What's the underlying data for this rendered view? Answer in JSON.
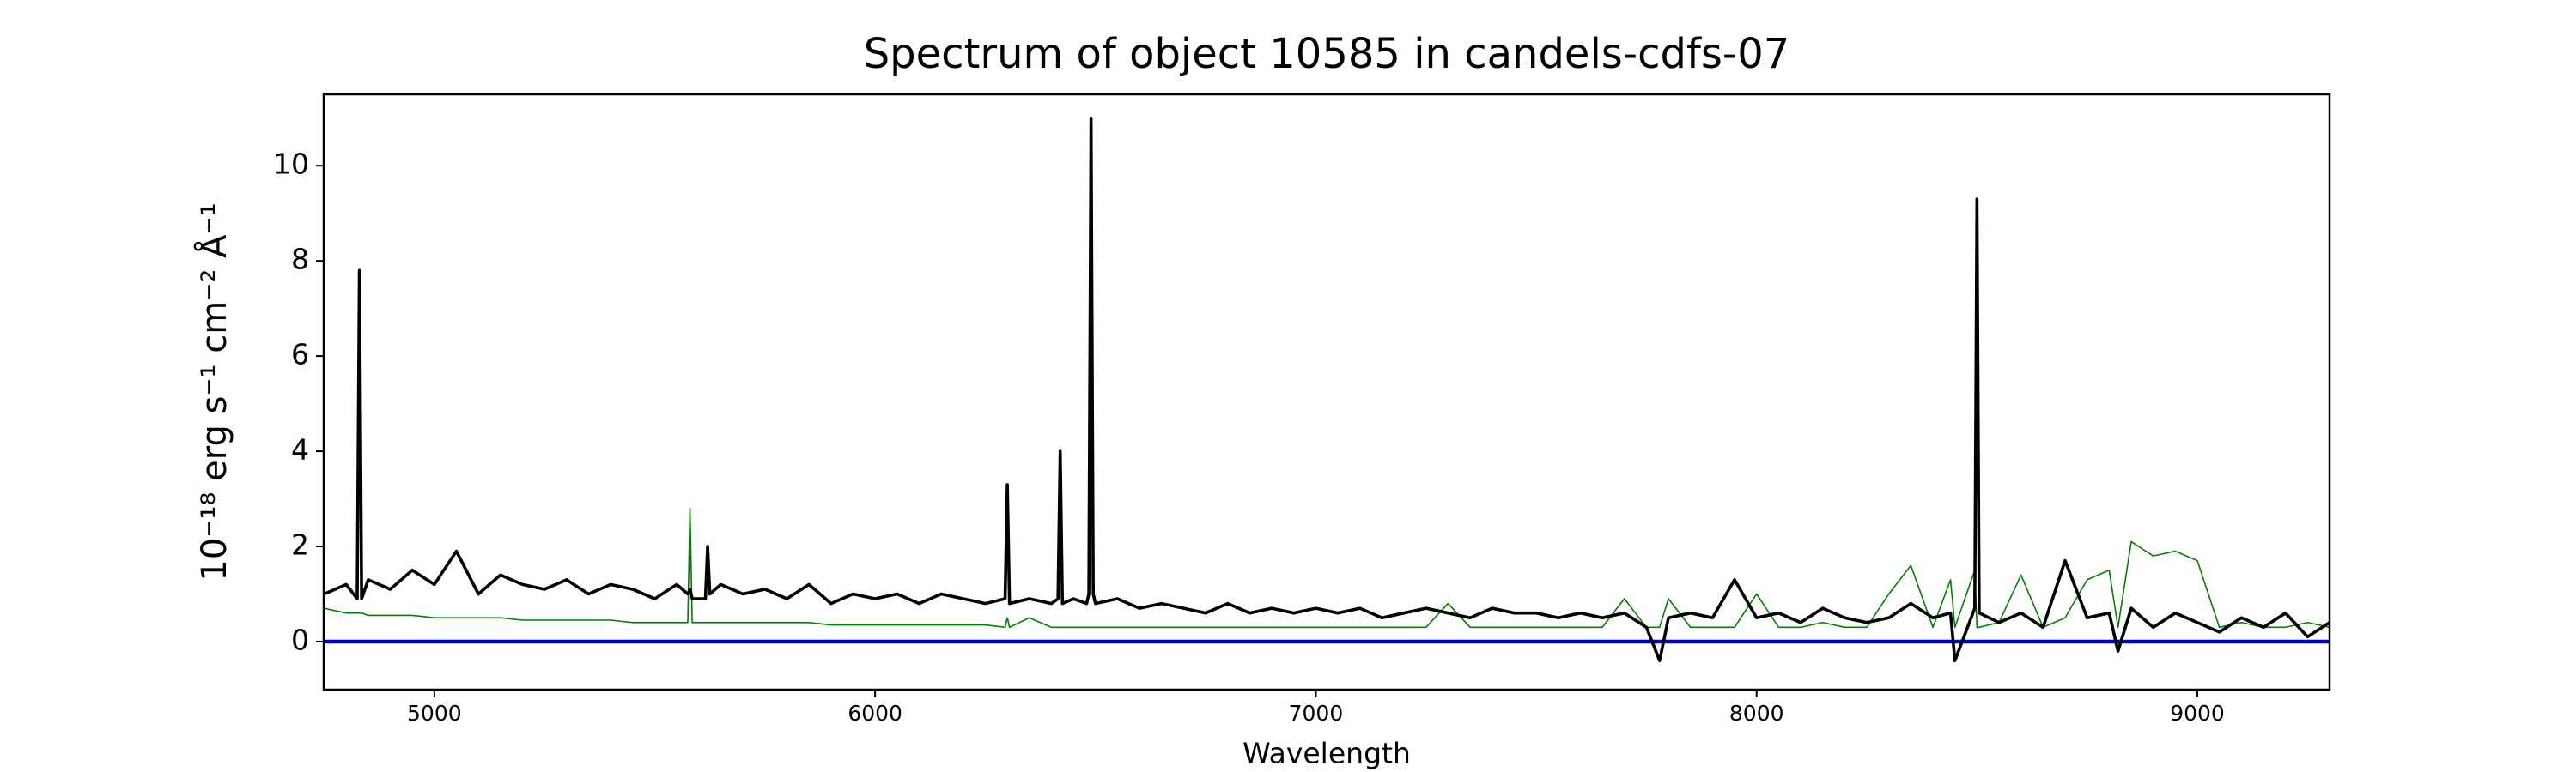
{
  "chart_data": {
    "type": "line",
    "title": "Spectrum of object 10585 in candels-cdfs-07",
    "xlabel": "Wavelength",
    "ylabel": "10⁻¹⁸ erg s⁻¹ cm⁻² Å⁻¹",
    "xlim": [
      4749,
      9300
    ],
    "ylim": [
      -1.01,
      11.5
    ],
    "xticks": [
      5000,
      6000,
      7000,
      8000,
      9000
    ],
    "yticks": [
      0,
      2,
      4,
      6,
      8,
      10
    ],
    "x": [
      4750,
      4800,
      4825,
      4830,
      4835,
      4850,
      4900,
      4950,
      5000,
      5050,
      5100,
      5150,
      5200,
      5250,
      5300,
      5350,
      5400,
      5450,
      5500,
      5550,
      5575,
      5580,
      5585,
      5615,
      5620,
      5625,
      5650,
      5700,
      5750,
      5800,
      5850,
      5900,
      5950,
      6000,
      6050,
      6100,
      6150,
      6200,
      6250,
      6295,
      6300,
      6305,
      6350,
      6400,
      6415,
      6420,
      6425,
      6450,
      6480,
      6485,
      6490,
      6495,
      6500,
      6550,
      6600,
      6650,
      6700,
      6750,
      6800,
      6850,
      6900,
      6950,
      7000,
      7050,
      7100,
      7150,
      7200,
      7250,
      7300,
      7350,
      7400,
      7450,
      7500,
      7550,
      7600,
      7650,
      7700,
      7750,
      7780,
      7800,
      7850,
      7900,
      7950,
      8000,
      8050,
      8100,
      8150,
      8200,
      8250,
      8300,
      8350,
      8400,
      8440,
      8450,
      8495,
      8500,
      8505,
      8550,
      8600,
      8650,
      8700,
      8750,
      8800,
      8820,
      8850,
      8900,
      8950,
      9000,
      9050,
      9100,
      9150,
      9200,
      9250,
      9300
    ],
    "series": [
      {
        "color": "#008000",
        "width": 1.6,
        "values": [
          0.7,
          0.6,
          0.6,
          0.6,
          0.6,
          0.55,
          0.55,
          0.55,
          0.5,
          0.5,
          0.5,
          0.5,
          0.45,
          0.45,
          0.45,
          0.45,
          0.45,
          0.4,
          0.4,
          0.4,
          0.4,
          2.8,
          0.4,
          0.4,
          0.4,
          0.4,
          0.4,
          0.4,
          0.4,
          0.4,
          0.4,
          0.35,
          0.35,
          0.35,
          0.35,
          0.35,
          0.35,
          0.35,
          0.35,
          0.3,
          0.5,
          0.3,
          0.5,
          0.3,
          0.3,
          0.3,
          0.3,
          0.3,
          0.3,
          0.3,
          0.3,
          0.3,
          0.3,
          0.3,
          0.3,
          0.3,
          0.3,
          0.3,
          0.3,
          0.3,
          0.3,
          0.3,
          0.3,
          0.3,
          0.3,
          0.3,
          0.3,
          0.3,
          0.8,
          0.3,
          0.3,
          0.3,
          0.3,
          0.3,
          0.3,
          0.3,
          0.9,
          0.3,
          0.3,
          0.9,
          0.3,
          0.3,
          0.3,
          1.0,
          0.3,
          0.3,
          0.4,
          0.3,
          0.3,
          1.0,
          1.6,
          0.3,
          1.3,
          0.3,
          1.5,
          0.3,
          0.3,
          0.4,
          1.4,
          0.3,
          0.5,
          1.3,
          1.5,
          0.3,
          2.1,
          1.8,
          1.9,
          1.7,
          0.3,
          0.4,
          0.3,
          0.3,
          0.4,
          0.3
        ]
      },
      {
        "color": "#0000cc",
        "width": 4.5,
        "values": [
          0,
          0,
          0,
          0,
          0,
          0,
          0,
          0,
          0,
          0,
          0,
          0,
          0,
          0,
          0,
          0,
          0,
          0,
          0,
          0,
          0,
          0,
          0,
          0,
          0,
          0,
          0,
          0,
          0,
          0,
          0,
          0,
          0,
          0,
          0,
          0,
          0,
          0,
          0,
          0,
          0,
          0,
          0,
          0,
          0,
          0,
          0,
          0,
          0,
          0,
          0,
          0,
          0,
          0,
          0,
          0,
          0,
          0,
          0,
          0,
          0,
          0,
          0,
          0,
          0,
          0,
          0,
          0,
          0,
          0,
          0,
          0,
          0,
          0,
          0,
          0,
          0,
          0,
          0,
          0,
          0,
          0,
          0,
          0,
          0,
          0,
          0,
          0,
          0,
          0,
          0,
          0,
          0,
          0,
          0,
          0,
          0,
          0,
          0,
          0,
          0,
          0,
          0,
          0,
          0,
          0,
          0,
          0,
          0,
          0,
          0,
          0,
          0,
          0
        ]
      },
      {
        "color": "#000000",
        "width": 3.6,
        "values": [
          1.0,
          1.2,
          0.9,
          7.8,
          0.9,
          1.3,
          1.1,
          1.5,
          1.2,
          1.9,
          1.0,
          1.4,
          1.2,
          1.1,
          1.3,
          1.0,
          1.2,
          1.1,
          0.9,
          1.2,
          1.0,
          1.1,
          0.9,
          0.9,
          2.0,
          1.0,
          1.2,
          1.0,
          1.1,
          0.9,
          1.2,
          0.8,
          1.0,
          0.9,
          1.0,
          0.8,
          1.0,
          0.9,
          0.8,
          0.9,
          3.3,
          0.8,
          0.9,
          0.8,
          0.9,
          4.0,
          0.8,
          0.9,
          0.8,
          1.0,
          11.0,
          1.0,
          0.8,
          0.9,
          0.7,
          0.8,
          0.7,
          0.6,
          0.8,
          0.6,
          0.7,
          0.6,
          0.7,
          0.6,
          0.7,
          0.5,
          0.6,
          0.7,
          0.6,
          0.5,
          0.7,
          0.6,
          0.6,
          0.5,
          0.6,
          0.5,
          0.6,
          0.3,
          -0.4,
          0.5,
          0.6,
          0.5,
          1.3,
          0.5,
          0.6,
          0.4,
          0.7,
          0.5,
          0.4,
          0.5,
          0.8,
          0.5,
          0.6,
          -0.4,
          0.7,
          9.3,
          0.6,
          0.4,
          0.6,
          0.3,
          1.7,
          0.5,
          0.6,
          -0.2,
          0.7,
          0.3,
          0.6,
          0.4,
          0.2,
          0.5,
          0.3,
          0.6,
          0.1,
          0.4
        ]
      }
    ]
  }
}
